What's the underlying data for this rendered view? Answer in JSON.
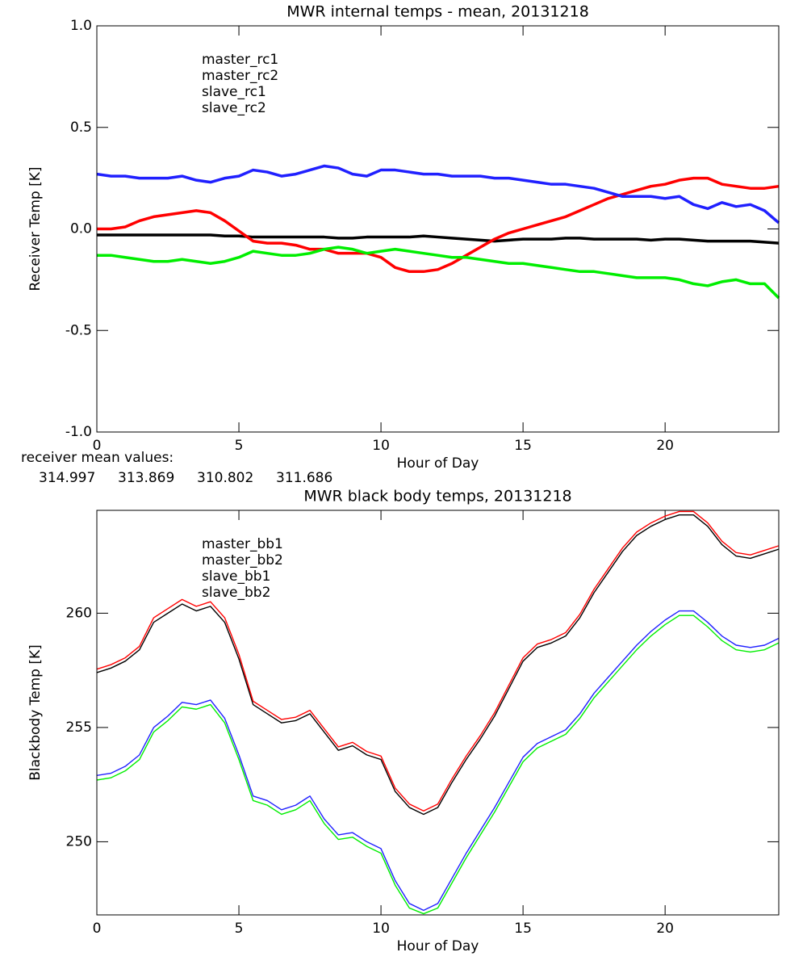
{
  "chart_data": [
    {
      "type": "line",
      "title": "MWR internal temps - mean, 20131218",
      "xlabel": "Hour of Day",
      "ylabel": "Receiver Temp [K]",
      "xlim": [
        0,
        24
      ],
      "xticks": [
        0,
        5,
        10,
        15,
        20
      ],
      "ylim": [
        -1,
        1
      ],
      "yticks": [
        {
          "value": -1,
          "label": "-1.0"
        },
        -0.5,
        {
          "value": 0,
          "label": "0.0"
        },
        0.5,
        {
          "value": 1,
          "label": "1.0"
        }
      ],
      "x": [
        0,
        0.5,
        1,
        1.5,
        2,
        2.5,
        3,
        3.5,
        4,
        4.5,
        5,
        5.5,
        6,
        6.5,
        7,
        7.5,
        8,
        8.5,
        9,
        9.5,
        10,
        10.5,
        11,
        11.5,
        12,
        12.5,
        13,
        13.5,
        14,
        14.5,
        15,
        15.5,
        16,
        16.5,
        17,
        17.5,
        18,
        18.5,
        19,
        19.5,
        20,
        20.5,
        21,
        21.5,
        22,
        22.5,
        23,
        23.5,
        24
      ],
      "series": [
        {
          "name": "master_rc1",
          "color": "#000000",
          "values": [
            -0.03,
            -0.03,
            -0.03,
            -0.03,
            -0.03,
            -0.03,
            -0.03,
            -0.03,
            -0.03,
            -0.035,
            -0.035,
            -0.04,
            -0.04,
            -0.04,
            -0.04,
            -0.04,
            -0.04,
            -0.045,
            -0.045,
            -0.04,
            -0.04,
            -0.04,
            -0.04,
            -0.035,
            -0.04,
            -0.045,
            -0.05,
            -0.055,
            -0.06,
            -0.055,
            -0.05,
            -0.05,
            -0.05,
            -0.045,
            -0.045,
            -0.05,
            -0.05,
            -0.05,
            -0.05,
            -0.055,
            -0.05,
            -0.05,
            -0.055,
            -0.06,
            -0.06,
            -0.06,
            -0.06,
            -0.065,
            -0.07
          ]
        },
        {
          "name": "master_rc2",
          "color": "#ff0000",
          "values": [
            0,
            0,
            0.01,
            0.04,
            0.06,
            0.07,
            0.08,
            0.09,
            0.08,
            0.04,
            -0.01,
            -0.06,
            -0.07,
            -0.07,
            -0.08,
            -0.1,
            -0.1,
            -0.12,
            -0.12,
            -0.12,
            -0.14,
            -0.19,
            -0.21,
            -0.21,
            -0.2,
            -0.17,
            -0.13,
            -0.09,
            -0.05,
            -0.02,
            0,
            0.02,
            0.04,
            0.06,
            0.09,
            0.12,
            0.15,
            0.17,
            0.19,
            0.21,
            0.22,
            0.24,
            0.25,
            0.25,
            0.22,
            0.21,
            0.2,
            0.2,
            0.21
          ]
        },
        {
          "name": "slave_rc1",
          "color": "#2020ff",
          "values": [
            0.27,
            0.26,
            0.26,
            0.25,
            0.25,
            0.25,
            0.26,
            0.24,
            0.23,
            0.25,
            0.26,
            0.29,
            0.28,
            0.26,
            0.27,
            0.29,
            0.31,
            0.3,
            0.27,
            0.26,
            0.29,
            0.29,
            0.28,
            0.27,
            0.27,
            0.26,
            0.26,
            0.26,
            0.25,
            0.25,
            0.24,
            0.23,
            0.22,
            0.22,
            0.21,
            0.2,
            0.18,
            0.16,
            0.16,
            0.16,
            0.15,
            0.16,
            0.12,
            0.1,
            0.13,
            0.11,
            0.12,
            0.09,
            0.03
          ]
        },
        {
          "name": "slave_rc2",
          "color": "#00ee00",
          "values": [
            -0.13,
            -0.13,
            -0.14,
            -0.15,
            -0.16,
            -0.16,
            -0.15,
            -0.16,
            -0.17,
            -0.16,
            -0.14,
            -0.11,
            -0.12,
            -0.13,
            -0.13,
            -0.12,
            -0.1,
            -0.09,
            -0.1,
            -0.12,
            -0.11,
            -0.1,
            -0.11,
            -0.12,
            -0.13,
            -0.14,
            -0.14,
            -0.15,
            -0.16,
            -0.17,
            -0.17,
            -0.18,
            -0.19,
            -0.2,
            -0.21,
            -0.21,
            -0.22,
            -0.23,
            -0.24,
            -0.24,
            -0.24,
            -0.25,
            -0.27,
            -0.28,
            -0.26,
            -0.25,
            -0.27,
            -0.27,
            -0.34
          ]
        }
      ],
      "annotation": {
        "label": "receiver mean values:",
        "values": [
          314.997,
          313.869,
          310.802,
          311.686
        ]
      }
    },
    {
      "type": "line",
      "title": "MWR black body temps, 20131218",
      "xlabel": "Hour of Day",
      "ylabel": "Blackbody Temp [K]",
      "xlim": [
        0,
        24
      ],
      "xticks": [
        0,
        5,
        10,
        15,
        20
      ],
      "ylim": [
        246.8,
        264.5
      ],
      "yticks": [
        250,
        255,
        260
      ],
      "x": [
        0,
        0.5,
        1,
        1.5,
        2,
        2.5,
        3,
        3.5,
        4,
        4.5,
        5,
        5.5,
        6,
        6.5,
        7,
        7.5,
        8,
        8.5,
        9,
        9.5,
        10,
        10.5,
        11,
        11.5,
        12,
        12.5,
        13,
        13.5,
        14,
        14.5,
        15,
        15.5,
        16,
        16.5,
        17,
        17.5,
        18,
        18.5,
        19,
        19.5,
        20,
        20.5,
        21,
        21.5,
        22,
        22.5,
        23,
        23.5,
        24
      ],
      "series": [
        {
          "name": "master_bb1",
          "color": "#000000",
          "values": [
            257.4,
            257.6,
            257.9,
            258.4,
            259.6,
            260.0,
            260.4,
            260.1,
            260.3,
            259.6,
            258.0,
            256.0,
            255.6,
            255.2,
            255.3,
            255.6,
            254.8,
            254.0,
            254.2,
            253.8,
            253.6,
            252.2,
            251.5,
            251.2,
            251.5,
            252.6,
            253.6,
            254.5,
            255.5,
            256.7,
            257.9,
            258.5,
            258.7,
            259.0,
            259.8,
            260.9,
            261.8,
            262.7,
            263.4,
            263.8,
            264.1,
            264.3,
            264.3,
            263.8,
            263.0,
            262.5,
            262.4,
            262.6,
            262.8
          ]
        },
        {
          "name": "master_bb2",
          "color": "#ff0000",
          "values": [
            257.55,
            257.75,
            258.05,
            258.55,
            259.8,
            260.2,
            260.6,
            260.3,
            260.5,
            259.8,
            258.2,
            256.15,
            255.75,
            255.35,
            255.45,
            255.75,
            254.95,
            254.15,
            254.35,
            253.95,
            253.75,
            252.35,
            251.65,
            251.35,
            251.65,
            252.75,
            253.75,
            254.65,
            255.65,
            256.85,
            258.05,
            258.65,
            258.85,
            259.15,
            259.95,
            261.05,
            261.95,
            262.85,
            263.55,
            263.95,
            264.25,
            264.45,
            264.45,
            263.95,
            263.15,
            262.65,
            262.55,
            262.75,
            262.95
          ]
        },
        {
          "name": "slave_bb1",
          "color": "#2020ff",
          "values": [
            252.9,
            253.0,
            253.3,
            253.8,
            255.0,
            255.5,
            256.1,
            256.0,
            256.2,
            255.4,
            253.8,
            252.0,
            251.8,
            251.4,
            251.6,
            252.0,
            251.0,
            250.3,
            250.4,
            250.0,
            249.7,
            248.3,
            247.3,
            247.0,
            247.3,
            248.4,
            249.5,
            250.5,
            251.5,
            252.6,
            253.7,
            254.3,
            254.6,
            254.9,
            255.6,
            256.5,
            257.2,
            257.9,
            258.6,
            259.2,
            259.7,
            260.1,
            260.1,
            259.6,
            259.0,
            258.6,
            258.5,
            258.6,
            258.9
          ]
        },
        {
          "name": "slave_bb2",
          "color": "#00ee00",
          "values": [
            252.7,
            252.8,
            253.1,
            253.6,
            254.8,
            255.3,
            255.9,
            255.8,
            256.0,
            255.2,
            253.6,
            251.8,
            251.6,
            251.2,
            251.4,
            251.8,
            250.8,
            250.1,
            250.2,
            249.8,
            249.5,
            248.1,
            247.1,
            246.85,
            247.1,
            248.2,
            249.3,
            250.3,
            251.3,
            252.4,
            253.5,
            254.1,
            254.4,
            254.7,
            255.4,
            256.3,
            257.0,
            257.7,
            258.4,
            259.0,
            259.5,
            259.9,
            259.9,
            259.4,
            258.8,
            258.4,
            258.3,
            258.4,
            258.7
          ]
        }
      ]
    }
  ]
}
